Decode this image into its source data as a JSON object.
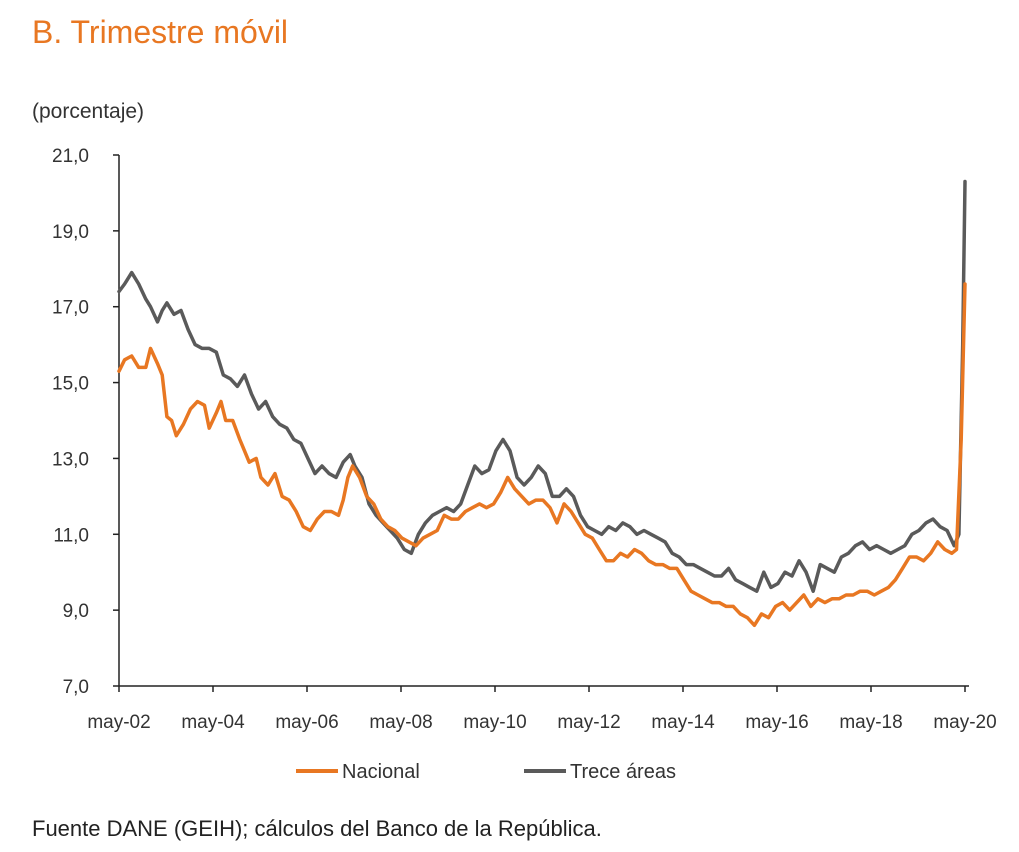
{
  "title": "B. Trimestre móvil",
  "unit_label": "(porcentaje)",
  "source": "Fuente DANE (GEIH); cálculos del Banco de la República.",
  "colors": {
    "nacional": "#E87722",
    "trece": "#5A5A5A",
    "axis": "#222222"
  },
  "chart_data": {
    "type": "line",
    "title": "B. Trimestre móvil",
    "ylabel": "(porcentaje)",
    "xlabel": "",
    "ylim": [
      7.0,
      21.0
    ],
    "y_ticks": [
      "7,0",
      "9,0",
      "11,0",
      "13,0",
      "15,0",
      "17,0",
      "19,0",
      "21,0"
    ],
    "x_ticks": [
      "may-02",
      "may-04",
      "may-06",
      "may-08",
      "may-10",
      "may-12",
      "may-14",
      "may-16",
      "may-18",
      "may-20"
    ],
    "x_range_years": [
      2002.33,
      2020.33
    ],
    "legend": "bottom-center",
    "grid": false,
    "series": [
      {
        "name": "Nacional",
        "points": [
          [
            2002.33,
            15.3
          ],
          [
            2002.45,
            15.6
          ],
          [
            2002.6,
            15.7
          ],
          [
            2002.75,
            15.4
          ],
          [
            2002.9,
            15.4
          ],
          [
            2003.0,
            15.9
          ],
          [
            2003.15,
            15.5
          ],
          [
            2003.25,
            15.2
          ],
          [
            2003.35,
            14.1
          ],
          [
            2003.45,
            14.0
          ],
          [
            2003.55,
            13.6
          ],
          [
            2003.7,
            13.9
          ],
          [
            2003.85,
            14.3
          ],
          [
            2004.0,
            14.5
          ],
          [
            2004.15,
            14.4
          ],
          [
            2004.25,
            13.8
          ],
          [
            2004.4,
            14.2
          ],
          [
            2004.5,
            14.5
          ],
          [
            2004.6,
            14.0
          ],
          [
            2004.75,
            14.0
          ],
          [
            2004.9,
            13.5
          ],
          [
            2005.0,
            13.2
          ],
          [
            2005.1,
            12.9
          ],
          [
            2005.25,
            13.0
          ],
          [
            2005.35,
            12.5
          ],
          [
            2005.5,
            12.3
          ],
          [
            2005.65,
            12.6
          ],
          [
            2005.8,
            12.0
          ],
          [
            2005.95,
            11.9
          ],
          [
            2006.1,
            11.6
          ],
          [
            2006.25,
            11.2
          ],
          [
            2006.4,
            11.1
          ],
          [
            2006.55,
            11.4
          ],
          [
            2006.7,
            11.6
          ],
          [
            2006.85,
            11.6
          ],
          [
            2007.0,
            11.5
          ],
          [
            2007.1,
            11.9
          ],
          [
            2007.2,
            12.5
          ],
          [
            2007.3,
            12.8
          ],
          [
            2007.45,
            12.5
          ],
          [
            2007.6,
            12.0
          ],
          [
            2007.75,
            11.8
          ],
          [
            2007.9,
            11.4
          ],
          [
            2008.05,
            11.2
          ],
          [
            2008.2,
            11.1
          ],
          [
            2008.35,
            10.9
          ],
          [
            2008.5,
            10.8
          ],
          [
            2008.65,
            10.7
          ],
          [
            2008.8,
            10.9
          ],
          [
            2008.95,
            11.0
          ],
          [
            2009.1,
            11.1
          ],
          [
            2009.25,
            11.5
          ],
          [
            2009.4,
            11.4
          ],
          [
            2009.55,
            11.4
          ],
          [
            2009.7,
            11.6
          ],
          [
            2009.85,
            11.7
          ],
          [
            2010.0,
            11.8
          ],
          [
            2010.15,
            11.7
          ],
          [
            2010.3,
            11.8
          ],
          [
            2010.45,
            12.1
          ],
          [
            2010.6,
            12.5
          ],
          [
            2010.75,
            12.2
          ],
          [
            2010.9,
            12.0
          ],
          [
            2011.05,
            11.8
          ],
          [
            2011.2,
            11.9
          ],
          [
            2011.35,
            11.9
          ],
          [
            2011.5,
            11.7
          ],
          [
            2011.65,
            11.3
          ],
          [
            2011.8,
            11.8
          ],
          [
            2011.95,
            11.6
          ],
          [
            2012.1,
            11.3
          ],
          [
            2012.25,
            11.0
          ],
          [
            2012.4,
            10.9
          ],
          [
            2012.55,
            10.6
          ],
          [
            2012.7,
            10.3
          ],
          [
            2012.85,
            10.3
          ],
          [
            2013.0,
            10.5
          ],
          [
            2013.15,
            10.4
          ],
          [
            2013.3,
            10.6
          ],
          [
            2013.45,
            10.5
          ],
          [
            2013.6,
            10.3
          ],
          [
            2013.75,
            10.2
          ],
          [
            2013.9,
            10.2
          ],
          [
            2014.05,
            10.1
          ],
          [
            2014.2,
            10.1
          ],
          [
            2014.35,
            9.8
          ],
          [
            2014.5,
            9.5
          ],
          [
            2014.65,
            9.4
          ],
          [
            2014.8,
            9.3
          ],
          [
            2014.95,
            9.2
          ],
          [
            2015.1,
            9.2
          ],
          [
            2015.25,
            9.1
          ],
          [
            2015.4,
            9.1
          ],
          [
            2015.55,
            8.9
          ],
          [
            2015.7,
            8.8
          ],
          [
            2015.85,
            8.6
          ],
          [
            2016.0,
            8.9
          ],
          [
            2016.15,
            8.8
          ],
          [
            2016.3,
            9.1
          ],
          [
            2016.45,
            9.2
          ],
          [
            2016.6,
            9.0
          ],
          [
            2016.75,
            9.2
          ],
          [
            2016.9,
            9.4
          ],
          [
            2017.05,
            9.1
          ],
          [
            2017.2,
            9.3
          ],
          [
            2017.35,
            9.2
          ],
          [
            2017.5,
            9.3
          ],
          [
            2017.65,
            9.3
          ],
          [
            2017.8,
            9.4
          ],
          [
            2017.95,
            9.4
          ],
          [
            2018.1,
            9.5
          ],
          [
            2018.25,
            9.5
          ],
          [
            2018.4,
            9.4
          ],
          [
            2018.55,
            9.5
          ],
          [
            2018.7,
            9.6
          ],
          [
            2018.85,
            9.8
          ],
          [
            2019.0,
            10.1
          ],
          [
            2019.15,
            10.4
          ],
          [
            2019.3,
            10.4
          ],
          [
            2019.45,
            10.3
          ],
          [
            2019.6,
            10.5
          ],
          [
            2019.75,
            10.8
          ],
          [
            2019.9,
            10.6
          ],
          [
            2020.05,
            10.5
          ],
          [
            2020.15,
            10.6
          ],
          [
            2020.25,
            13.5
          ],
          [
            2020.33,
            17.6
          ]
        ]
      },
      {
        "name": "Trece áreas",
        "points": [
          [
            2002.33,
            17.4
          ],
          [
            2002.45,
            17.6
          ],
          [
            2002.6,
            17.9
          ],
          [
            2002.75,
            17.6
          ],
          [
            2002.9,
            17.2
          ],
          [
            2003.0,
            17.0
          ],
          [
            2003.15,
            16.6
          ],
          [
            2003.25,
            16.9
          ],
          [
            2003.35,
            17.1
          ],
          [
            2003.5,
            16.8
          ],
          [
            2003.65,
            16.9
          ],
          [
            2003.8,
            16.4
          ],
          [
            2003.95,
            16.0
          ],
          [
            2004.1,
            15.9
          ],
          [
            2004.25,
            15.9
          ],
          [
            2004.4,
            15.8
          ],
          [
            2004.55,
            15.2
          ],
          [
            2004.7,
            15.1
          ],
          [
            2004.85,
            14.9
          ],
          [
            2005.0,
            15.2
          ],
          [
            2005.15,
            14.7
          ],
          [
            2005.3,
            14.3
          ],
          [
            2005.45,
            14.5
          ],
          [
            2005.6,
            14.1
          ],
          [
            2005.75,
            13.9
          ],
          [
            2005.9,
            13.8
          ],
          [
            2006.05,
            13.5
          ],
          [
            2006.2,
            13.4
          ],
          [
            2006.35,
            13.0
          ],
          [
            2006.5,
            12.6
          ],
          [
            2006.65,
            12.8
          ],
          [
            2006.8,
            12.6
          ],
          [
            2006.95,
            12.5
          ],
          [
            2007.1,
            12.9
          ],
          [
            2007.25,
            13.1
          ],
          [
            2007.35,
            12.8
          ],
          [
            2007.5,
            12.5
          ],
          [
            2007.65,
            11.8
          ],
          [
            2007.8,
            11.5
          ],
          [
            2007.95,
            11.3
          ],
          [
            2008.1,
            11.1
          ],
          [
            2008.25,
            10.9
          ],
          [
            2008.4,
            10.6
          ],
          [
            2008.55,
            10.5
          ],
          [
            2008.7,
            11.0
          ],
          [
            2008.85,
            11.3
          ],
          [
            2009.0,
            11.5
          ],
          [
            2009.15,
            11.6
          ],
          [
            2009.3,
            11.7
          ],
          [
            2009.45,
            11.6
          ],
          [
            2009.6,
            11.8
          ],
          [
            2009.75,
            12.3
          ],
          [
            2009.9,
            12.8
          ],
          [
            2010.05,
            12.6
          ],
          [
            2010.2,
            12.7
          ],
          [
            2010.35,
            13.2
          ],
          [
            2010.5,
            13.5
          ],
          [
            2010.65,
            13.2
          ],
          [
            2010.8,
            12.5
          ],
          [
            2010.95,
            12.3
          ],
          [
            2011.1,
            12.5
          ],
          [
            2011.25,
            12.8
          ],
          [
            2011.4,
            12.6
          ],
          [
            2011.55,
            12.0
          ],
          [
            2011.7,
            12.0
          ],
          [
            2011.85,
            12.2
          ],
          [
            2012.0,
            12.0
          ],
          [
            2012.15,
            11.5
          ],
          [
            2012.3,
            11.2
          ],
          [
            2012.45,
            11.1
          ],
          [
            2012.6,
            11.0
          ],
          [
            2012.75,
            11.2
          ],
          [
            2012.9,
            11.1
          ],
          [
            2013.05,
            11.3
          ],
          [
            2013.2,
            11.2
          ],
          [
            2013.35,
            11.0
          ],
          [
            2013.5,
            11.1
          ],
          [
            2013.65,
            11.0
          ],
          [
            2013.8,
            10.9
          ],
          [
            2013.95,
            10.8
          ],
          [
            2014.1,
            10.5
          ],
          [
            2014.25,
            10.4
          ],
          [
            2014.4,
            10.2
          ],
          [
            2014.55,
            10.2
          ],
          [
            2014.7,
            10.1
          ],
          [
            2014.85,
            10.0
          ],
          [
            2015.0,
            9.9
          ],
          [
            2015.15,
            9.9
          ],
          [
            2015.3,
            10.1
          ],
          [
            2015.45,
            9.8
          ],
          [
            2015.6,
            9.7
          ],
          [
            2015.75,
            9.6
          ],
          [
            2015.9,
            9.5
          ],
          [
            2016.05,
            10.0
          ],
          [
            2016.2,
            9.6
          ],
          [
            2016.35,
            9.7
          ],
          [
            2016.5,
            10.0
          ],
          [
            2016.65,
            9.9
          ],
          [
            2016.8,
            10.3
          ],
          [
            2016.95,
            10.0
          ],
          [
            2017.1,
            9.5
          ],
          [
            2017.25,
            10.2
          ],
          [
            2017.4,
            10.1
          ],
          [
            2017.55,
            10.0
          ],
          [
            2017.7,
            10.4
          ],
          [
            2017.85,
            10.5
          ],
          [
            2018.0,
            10.7
          ],
          [
            2018.15,
            10.8
          ],
          [
            2018.3,
            10.6
          ],
          [
            2018.45,
            10.7
          ],
          [
            2018.6,
            10.6
          ],
          [
            2018.75,
            10.5
          ],
          [
            2018.9,
            10.6
          ],
          [
            2019.05,
            10.7
          ],
          [
            2019.2,
            11.0
          ],
          [
            2019.35,
            11.1
          ],
          [
            2019.5,
            11.3
          ],
          [
            2019.65,
            11.4
          ],
          [
            2019.8,
            11.2
          ],
          [
            2019.95,
            11.1
          ],
          [
            2020.1,
            10.7
          ],
          [
            2020.2,
            11.0
          ],
          [
            2020.28,
            16.0
          ],
          [
            2020.33,
            20.3
          ]
        ]
      }
    ]
  }
}
